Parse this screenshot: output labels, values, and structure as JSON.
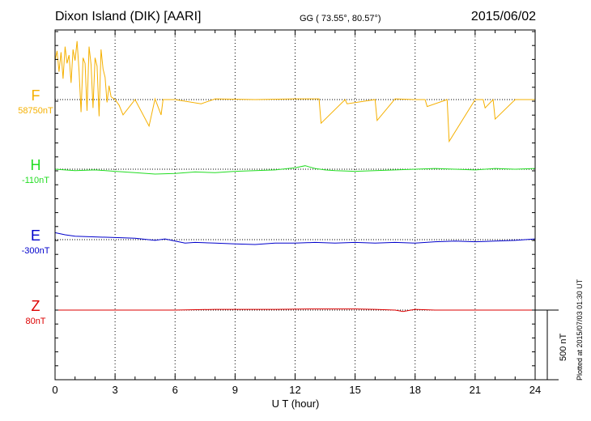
{
  "header": {
    "station": "Dixon Island (DIK)  [AARI]",
    "coords": "GG ( 73.55°,  80.57°)",
    "date": "2015/06/02"
  },
  "footnote": "Plotted at 2015/07/03 01:30 UT",
  "scale_bar_label": "500 nT",
  "chart_data": {
    "type": "line",
    "title": "Dixon Island (DIK)  [AARI]",
    "xlabel": "U T (hour)",
    "ylabel": "",
    "xlim": [
      0,
      24
    ],
    "xticks": [
      "0",
      "3",
      "6",
      "9",
      "12",
      "15",
      "18",
      "21",
      "24"
    ],
    "vertical_dotted_grid_every_hours": 3,
    "scale_bar_nT": 500,
    "series": [
      {
        "name": "F",
        "baseline_label": "58750nT",
        "color": "#f5b000",
        "x": [
          0,
          0.1,
          0.2,
          0.3,
          0.4,
          0.5,
          0.6,
          0.7,
          0.8,
          0.9,
          1.0,
          1.1,
          1.2,
          1.3,
          1.4,
          1.5,
          1.6,
          1.7,
          1.8,
          1.9,
          2.0,
          2.1,
          2.2,
          2.3,
          2.4,
          2.5,
          2.6,
          2.7,
          2.8,
          3.0,
          3.2,
          3.4,
          4.0,
          4.7,
          5.0,
          5.3,
          5.4,
          6.0,
          7.3,
          8.0,
          10.0,
          12.0,
          13.2,
          13.3,
          14.5,
          14.6,
          16.0,
          16.1,
          17.0,
          18.0,
          18.5,
          18.6,
          19.6,
          19.7,
          21.0,
          21.4,
          21.5,
          21.9,
          22.0,
          23.0,
          24.0
        ],
        "values": [
          280,
          350,
          200,
          340,
          150,
          380,
          260,
          320,
          120,
          360,
          280,
          420,
          200,
          -90,
          300,
          260,
          -80,
          380,
          250,
          -60,
          300,
          240,
          -120,
          360,
          220,
          160,
          -20,
          100,
          20,
          0,
          -40,
          -110,
          0,
          -190,
          5,
          -110,
          0,
          0,
          -30,
          5,
          0,
          5,
          5,
          -170,
          0,
          -30,
          0,
          -150,
          5,
          0,
          0,
          -50,
          0,
          -300,
          0,
          0,
          -60,
          0,
          -140,
          0,
          0
        ]
      },
      {
        "name": "H",
        "baseline_label": "-110nT",
        "color": "#22dd22",
        "x": [
          0,
          1,
          2,
          3,
          4,
          5,
          6,
          7,
          8,
          9,
          10,
          11,
          12,
          12.5,
          13,
          13.5,
          14,
          15,
          16,
          17,
          18,
          19,
          20,
          21,
          22,
          23,
          24
        ],
        "values": [
          0,
          -10,
          -5,
          -15,
          -25,
          -35,
          -30,
          -20,
          -25,
          -15,
          -10,
          -5,
          10,
          25,
          5,
          -5,
          -10,
          -15,
          -10,
          -5,
          0,
          5,
          0,
          -5,
          5,
          0,
          5
        ]
      },
      {
        "name": "E",
        "baseline_label": "-300nT",
        "color": "#0000cc",
        "x": [
          0,
          0.5,
          1,
          2,
          3,
          4,
          5,
          5.5,
          6,
          6.5,
          7,
          8,
          9,
          10,
          11,
          12,
          13,
          14,
          15,
          16,
          17,
          18,
          19,
          20,
          21,
          22,
          23,
          24
        ],
        "values": [
          50,
          35,
          25,
          20,
          15,
          10,
          -5,
          5,
          -10,
          -25,
          -20,
          -25,
          -30,
          -35,
          -25,
          -25,
          -20,
          -25,
          -20,
          -25,
          -20,
          -25,
          -15,
          -10,
          -15,
          -10,
          -5,
          5
        ]
      },
      {
        "name": "Z",
        "baseline_label": "80nT",
        "color": "#dd0000",
        "x": [
          0,
          2,
          4,
          6,
          8,
          9,
          11,
          13,
          15,
          16,
          17,
          17.4,
          18,
          19,
          20,
          21,
          22,
          23,
          24
        ],
        "values": [
          0,
          0,
          0,
          0,
          5,
          5,
          5,
          8,
          8,
          5,
          0,
          -10,
          5,
          0,
          0,
          0,
          0,
          0,
          0
        ]
      }
    ]
  }
}
